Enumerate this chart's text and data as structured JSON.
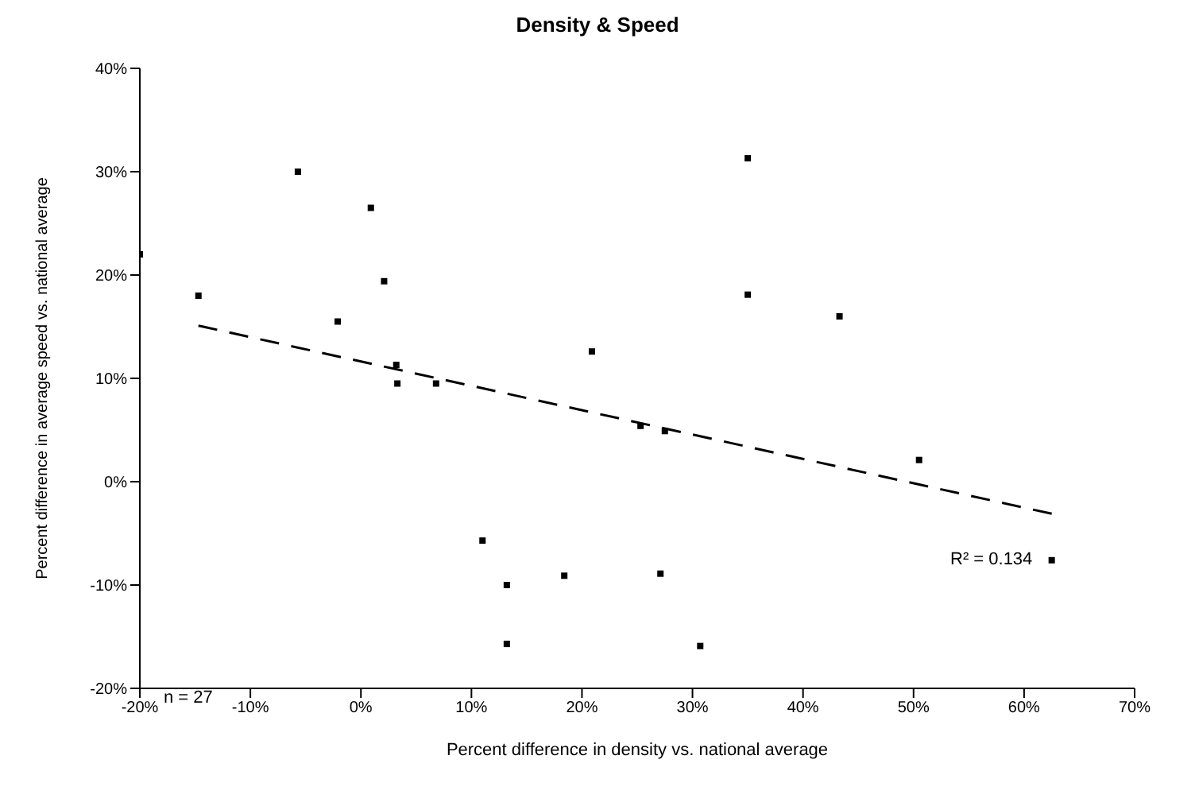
{
  "chart_data": {
    "type": "scatter",
    "title": "Density & Speed",
    "xlabel": "Percent difference in density vs. national average",
    "ylabel": "Percent difference in average speed vs. national average",
    "xlim": [
      -20,
      70
    ],
    "xticks": [
      {
        "value": -20,
        "label": "-20%"
      },
      {
        "value": -10,
        "label": "-10%"
      },
      {
        "value": 0,
        "label": "0%"
      },
      {
        "value": 10,
        "label": "10%"
      },
      {
        "value": 20,
        "label": "20%"
      },
      {
        "value": 30,
        "label": "30%"
      },
      {
        "value": 40,
        "label": "40%"
      },
      {
        "value": 50,
        "label": "50%"
      },
      {
        "value": 60,
        "label": "60%"
      },
      {
        "value": 70,
        "label": "70%"
      }
    ],
    "ylim": [
      -20,
      40
    ],
    "yticks": [
      {
        "value": -20,
        "label": "-20%"
      },
      {
        "value": -10,
        "label": "-10%"
      },
      {
        "value": 0,
        "label": "0%"
      },
      {
        "value": 10,
        "label": "10%"
      },
      {
        "value": 20,
        "label": "20%"
      },
      {
        "value": 30,
        "label": "30%"
      },
      {
        "value": 40,
        "label": "40%"
      }
    ],
    "grid": false,
    "legend": false,
    "marker": "square",
    "series": [
      {
        "color": "#000000",
        "x": [
          -20,
          -14.7,
          -5.7,
          0.9,
          2.1,
          -2.1,
          3.3,
          3.2,
          6.8,
          20.9,
          25.3,
          27.5,
          35,
          35,
          43.3,
          50.5,
          62.5,
          11,
          13.2,
          13.2,
          18.4,
          27.1,
          30.7
        ],
        "values": [
          22,
          18,
          30,
          26.5,
          19.4,
          15.5,
          9.5,
          11.3,
          9.5,
          12.6,
          5.4,
          4.9,
          31.3,
          18.1,
          16,
          2.1,
          -7.6,
          -5.7,
          -10,
          -15.7,
          -9.1,
          -8.9,
          -15.9
        ]
      },
      {
        "type": "line",
        "color": "#000000",
        "line_style": "dashed",
        "marker": "none",
        "x": [
          -14.7,
          62.5
        ],
        "values": [
          15.1,
          -3.1
        ]
      }
    ],
    "annotations": [
      "R² = 0.134",
      "n = 27"
    ]
  }
}
